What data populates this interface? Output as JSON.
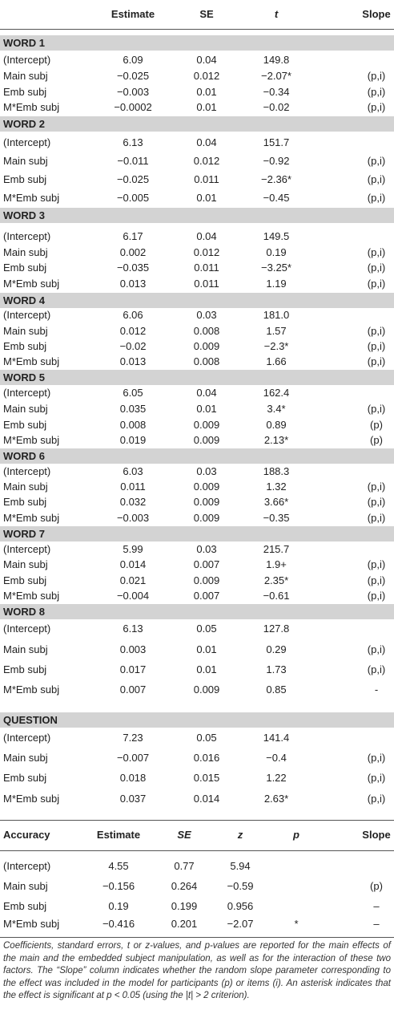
{
  "table": {
    "header": [
      "Estimate",
      "SE",
      "t",
      "Slope"
    ],
    "sections": [
      {
        "title": "WORD 1",
        "rows": [
          [
            "(Intercept)",
            "6.09",
            "0.04",
            "149.8"
          ],
          [
            "Main subj",
            "−0.025",
            "0.012",
            "−2.07*",
            "(p,i)"
          ],
          [
            "Emb subj",
            "−0.003",
            "0.01",
            "−0.34",
            "(p,i)"
          ],
          [
            "M*Emb subj",
            "−0.0002",
            "0.01",
            "−0.02",
            "(p,i)"
          ]
        ]
      },
      {
        "title": "WORD 2",
        "rows": [
          [
            "(Intercept)",
            "6.13",
            "0.04",
            "151.7"
          ],
          [
            "Main subj",
            "−0.011",
            "0.012",
            "−0.92",
            "(p,i)"
          ],
          [
            "Emb subj",
            "−0.025",
            "0.011",
            "−2.36*",
            "(p,i)"
          ],
          [
            "M*Emb subj",
            "−0.005",
            "0.01",
            "−0.45",
            "(p,i)"
          ]
        ]
      },
      {
        "title": "WORD 3",
        "rows": [
          [
            "(Intercept)",
            "6.17",
            "0.04",
            "149.5"
          ],
          [
            "Main subj",
            "0.002",
            "0.012",
            "0.19",
            "(p,i)"
          ],
          [
            "Emb subj",
            "−0.035",
            "0.011",
            "−3.25*",
            "(p,i)"
          ],
          [
            "M*Emb subj",
            "0.013",
            "0.011",
            "1.19",
            "(p,i)"
          ]
        ]
      },
      {
        "title": "WORD 4",
        "rows": [
          [
            "(Intercept)",
            "6.06",
            "0.03",
            "181.0"
          ],
          [
            "Main subj",
            "0.012",
            "0.008",
            "1.57",
            "(p,i)"
          ],
          [
            "Emb subj",
            "−0.02",
            "0.009",
            "−2.3*",
            "(p,i)"
          ],
          [
            "M*Emb subj",
            "0.013",
            "0.008",
            "1.66",
            "(p,i)"
          ]
        ]
      },
      {
        "title": "WORD 5",
        "rows": [
          [
            "(Intercept)",
            "6.05",
            "0.04",
            "162.4"
          ],
          [
            "Main subj",
            "0.035",
            "0.01",
            "3.4*",
            "(p,i)"
          ],
          [
            "Emb subj",
            "0.008",
            "0.009",
            "0.89",
            "(p)"
          ],
          [
            "M*Emb subj",
            "0.019",
            "0.009",
            "2.13*",
            "(p)"
          ]
        ]
      },
      {
        "title": "WORD 6",
        "rows": [
          [
            "(Intercept)",
            "6.03",
            "0.03",
            "188.3"
          ],
          [
            "Main subj",
            "0.011",
            "0.009",
            "1.32",
            "(p,i)"
          ],
          [
            "Emb subj",
            "0.032",
            "0.009",
            "3.66*",
            "(p,i)"
          ],
          [
            "M*Emb subj",
            "−0.003",
            "0.009",
            "−0.35",
            "(p,i)"
          ]
        ]
      },
      {
        "title": "WORD 7",
        "rows": [
          [
            "(Intercept)",
            "5.99",
            "0.03",
            "215.7"
          ],
          [
            "Main subj",
            "0.014",
            "0.007",
            "1.9+",
            "(p,i)"
          ],
          [
            "Emb subj",
            "0.021",
            "0.009",
            "2.35*",
            "(p,i)"
          ],
          [
            "M*Emb subj",
            "−0.004",
            "0.007",
            "−0.61",
            "(p,i)"
          ]
        ]
      },
      {
        "title": "WORD 8",
        "rows": [
          [
            "(Intercept)",
            "6.13",
            "0.05",
            "127.8"
          ],
          [
            "Main subj",
            "0.003",
            "0.01",
            "0.29",
            "(p,i)"
          ],
          [
            "Emb subj",
            "0.017",
            "0.01",
            "1.73",
            "(p,i)"
          ],
          [
            "M*Emb subj",
            "0.007",
            "0.009",
            "0.85",
            "-"
          ]
        ]
      },
      {
        "title": "QUESTION",
        "rows": [
          [
            "(Intercept)",
            "7.23",
            "0.05",
            "141.4"
          ],
          [
            "Main subj",
            "−0.007",
            "0.016",
            "−0.4",
            "(p,i)"
          ],
          [
            "Emb subj",
            "0.018",
            "0.015",
            "1.22",
            "(p,i)"
          ],
          [
            "M*Emb subj",
            "0.037",
            "0.014",
            "2.63*",
            "(p,i)"
          ]
        ]
      }
    ],
    "accuracy_header": [
      "Accuracy",
      "Estimate",
      "SE",
      "z",
      "p",
      "Slope"
    ],
    "accuracy_rows": [
      [
        "(Intercept)",
        "4.55",
        "0.77",
        "5.94"
      ],
      [
        "Main subj",
        "−0.156",
        "0.264",
        "−0.59",
        null,
        "(p)"
      ],
      [
        "Emb subj",
        "0.19",
        "0.199",
        "0.956",
        null,
        "–"
      ],
      [
        "M*Emb subj",
        "−0.416",
        "0.201",
        "−2.07",
        "*",
        "–"
      ]
    ],
    "caption": "Coefficients, standard errors, t or z-values, and p-values are reported for the main effects of the main and the embedded subject manipulation, as well as for the interaction of these two factors. The “Slope” column indicates whether the random slope parameter corresponding to the effect was included in the model for participants (p) or items (i). An asterisk indicates that the effect is significant at p < 0.05 (using the |t| > 2 criterion)."
  }
}
